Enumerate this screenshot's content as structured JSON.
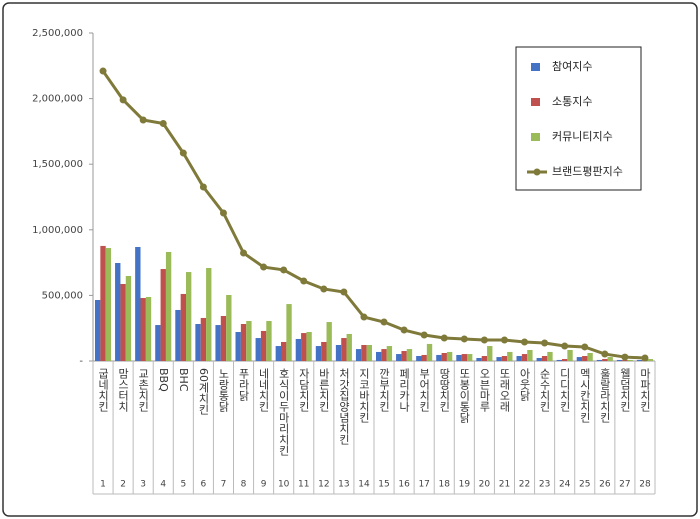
{
  "chart_data": {
    "type": "bar",
    "categories": [
      "굽네치킨",
      "맘스터치",
      "교촌치킨",
      "BBQ",
      "BHC",
      "60계치킨",
      "노랑통닭",
      "푸라닭",
      "네네치킨",
      "호식이두마리치킨",
      "자담치킨",
      "바른치킨",
      "처갓집양념치킨",
      "지코바치킨",
      "깐부치킨",
      "페리카나",
      "부어치킨",
      "땅땅치킨",
      "또봉이통닭",
      "오븐마루",
      "또래오래",
      "아웃닭",
      "순수치킨",
      "디디치킨",
      "멕시칸치킨",
      "훌랄라치킨",
      "웰덤치킨",
      "마파치킨"
    ],
    "ranks": [
      1,
      2,
      3,
      4,
      5,
      6,
      7,
      8,
      9,
      10,
      11,
      12,
      13,
      14,
      15,
      16,
      17,
      18,
      19,
      20,
      21,
      22,
      23,
      24,
      25,
      26,
      27,
      28
    ],
    "series": [
      {
        "name": "참여지수",
        "type": "bar",
        "color": "#4472c4",
        "values": [
          465000,
          747000,
          869000,
          274000,
          389000,
          282000,
          274000,
          221000,
          175000,
          114000,
          168000,
          114000,
          122000,
          91000,
          69000,
          53000,
          38000,
          46000,
          46000,
          23000,
          30000,
          38000,
          23000,
          8000,
          30000,
          8000,
          8000,
          8000
        ]
      },
      {
        "name": "소통지수",
        "type": "bar",
        "color": "#c0504d",
        "values": [
          877000,
          587000,
          480000,
          701000,
          511000,
          328000,
          343000,
          282000,
          229000,
          145000,
          213000,
          145000,
          175000,
          122000,
          91000,
          76000,
          46000,
          61000,
          53000,
          38000,
          38000,
          53000,
          38000,
          15000,
          38000,
          15000,
          8000,
          8000
        ]
      },
      {
        "name": "커뮤니티지수",
        "type": "bar",
        "color": "#9bbb59",
        "values": [
          861000,
          648000,
          488000,
          831000,
          678000,
          709000,
          503000,
          305000,
          305000,
          434000,
          221000,
          297000,
          206000,
          122000,
          114000,
          91000,
          130000,
          69000,
          53000,
          114000,
          69000,
          84000,
          69000,
          84000,
          61000,
          30000,
          8000,
          15000
        ]
      },
      {
        "name": "브랜드평판지수",
        "type": "line",
        "color": "#7f7a3a",
        "values": [
          2210000,
          1990000,
          1837000,
          1810000,
          1585000,
          1326000,
          1128000,
          823000,
          716000,
          694000,
          610000,
          549000,
          526000,
          335000,
          297000,
          236000,
          198000,
          175000,
          168000,
          160000,
          160000,
          145000,
          137000,
          114000,
          107000,
          53000,
          30000,
          23000
        ]
      }
    ],
    "ylim": [
      0,
      2500000
    ],
    "yticks": [
      {
        "value": 0,
        "label": "-"
      },
      {
        "value": 500000,
        "label": "500,000"
      },
      {
        "value": 1000000,
        "label": "1,000,000"
      },
      {
        "value": 1500000,
        "label": "1,500,000"
      },
      {
        "value": 2000000,
        "label": "2,000,000"
      },
      {
        "value": 2500000,
        "label": "2,500,000"
      }
    ],
    "grid": false,
    "legend": "top-right"
  }
}
